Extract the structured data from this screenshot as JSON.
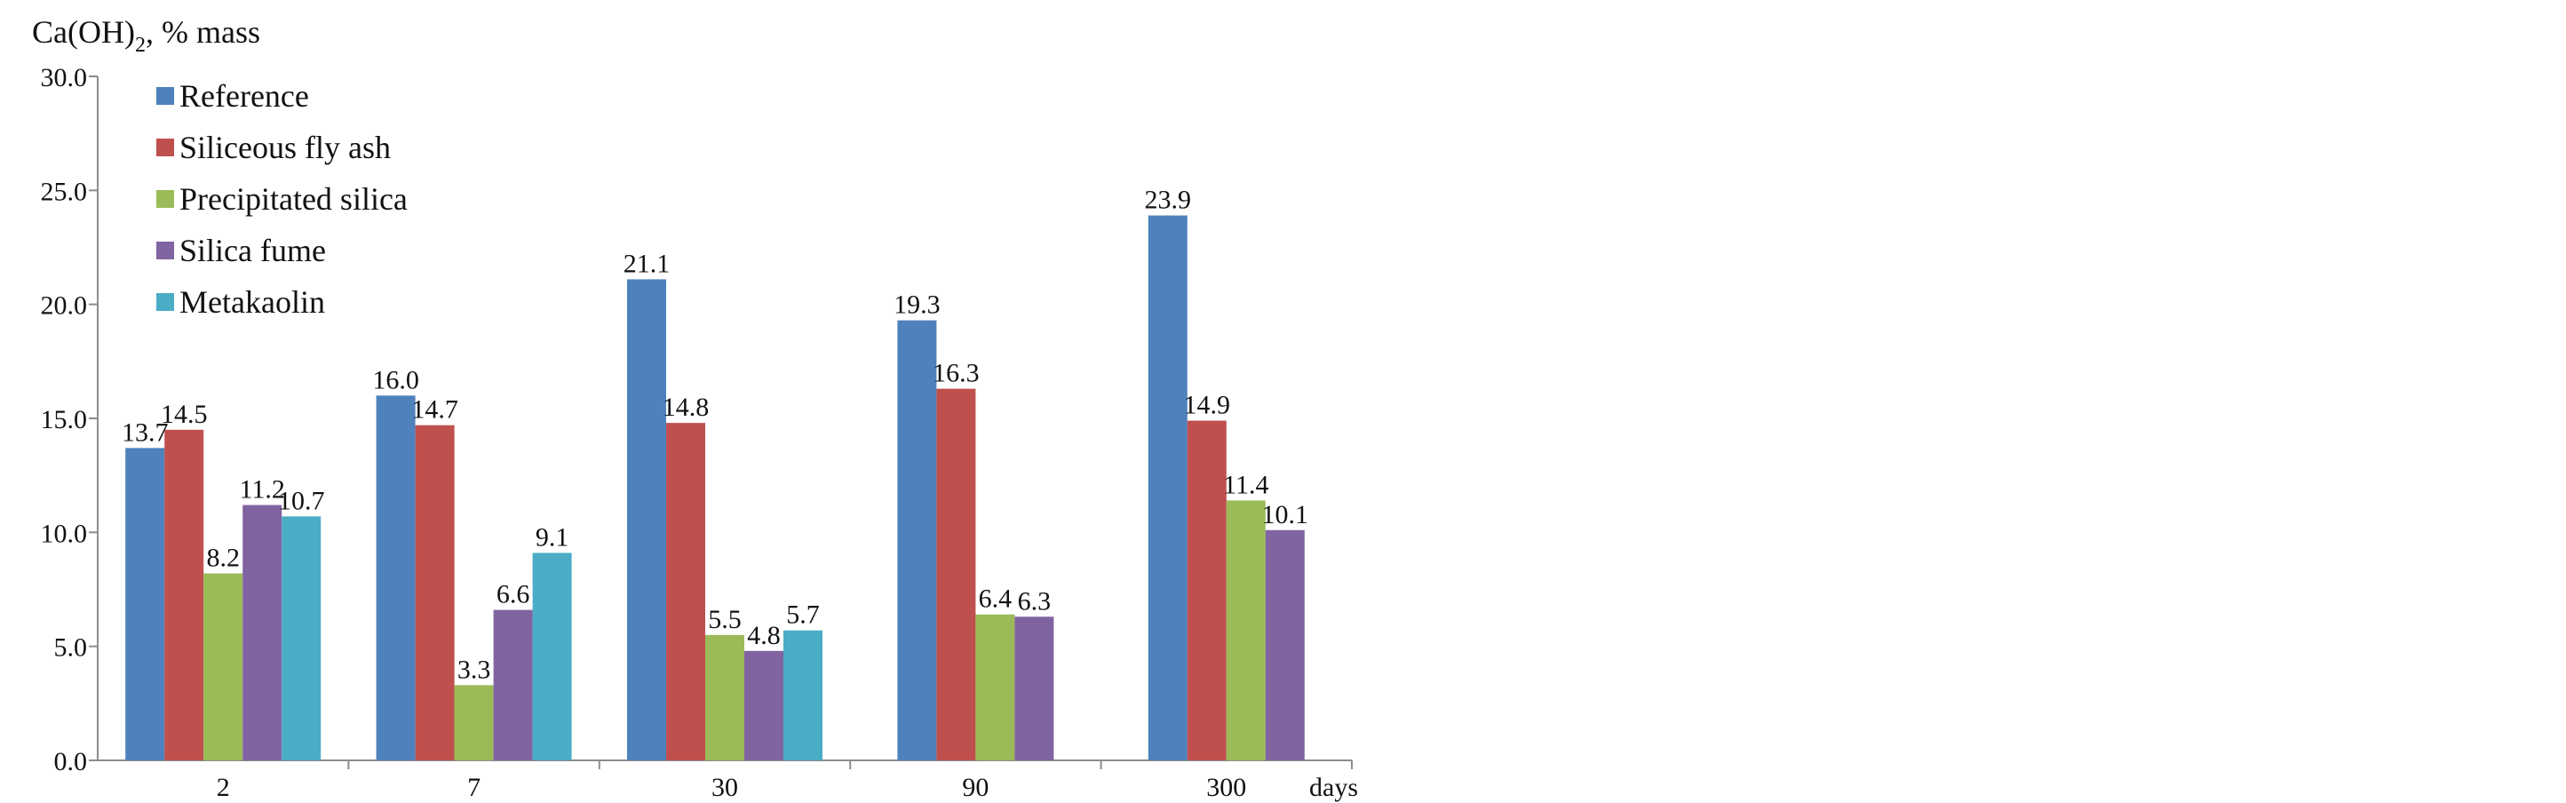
{
  "chart_data": {
    "type": "bar",
    "title": "",
    "ylabel_main": "Ca(OH)",
    "ylabel_sub": "2",
    "ylabel_rest": ", % mass",
    "xlabel": "days",
    "categories": [
      "2",
      "7",
      "30",
      "90",
      "300"
    ],
    "ylim": [
      0,
      30
    ],
    "yticks": [
      "0.0",
      "5.0",
      "10.0",
      "15.0",
      "20.0",
      "25.0",
      "30.0"
    ],
    "grid": false,
    "legend_position": "top-left",
    "series": [
      {
        "name": "Reference",
        "color": "#4F81BD",
        "values": [
          13.7,
          16.0,
          21.1,
          19.3,
          23.9
        ],
        "labels": [
          "13.7",
          "16.0",
          "21.1",
          "19.3",
          "23.9"
        ]
      },
      {
        "name": "Siliceous fly ash",
        "color": "#C0504D",
        "values": [
          14.5,
          14.7,
          14.8,
          16.3,
          14.9
        ],
        "labels": [
          "14.5",
          "14.7",
          "14.8",
          "16.3",
          "14.9"
        ]
      },
      {
        "name": "Precipitated silica",
        "color": "#9BBB59",
        "values": [
          8.2,
          3.3,
          5.5,
          6.4,
          11.4
        ],
        "labels": [
          "8.2",
          "3.3",
          "5.5",
          "6.4",
          "11.4"
        ]
      },
      {
        "name": "Silica fume",
        "color": "#8064A2",
        "values": [
          11.2,
          6.6,
          4.8,
          6.3,
          10.1
        ],
        "labels": [
          "11.2",
          "6.6",
          "4.8",
          "6.3",
          "10.1"
        ]
      },
      {
        "name": "Metakaolin",
        "color": "#4BACC6",
        "values": [
          10.7,
          9.1,
          5.7,
          null,
          null
        ],
        "labels": [
          "10.7",
          "9.1",
          "5.7",
          "",
          ""
        ]
      }
    ]
  }
}
